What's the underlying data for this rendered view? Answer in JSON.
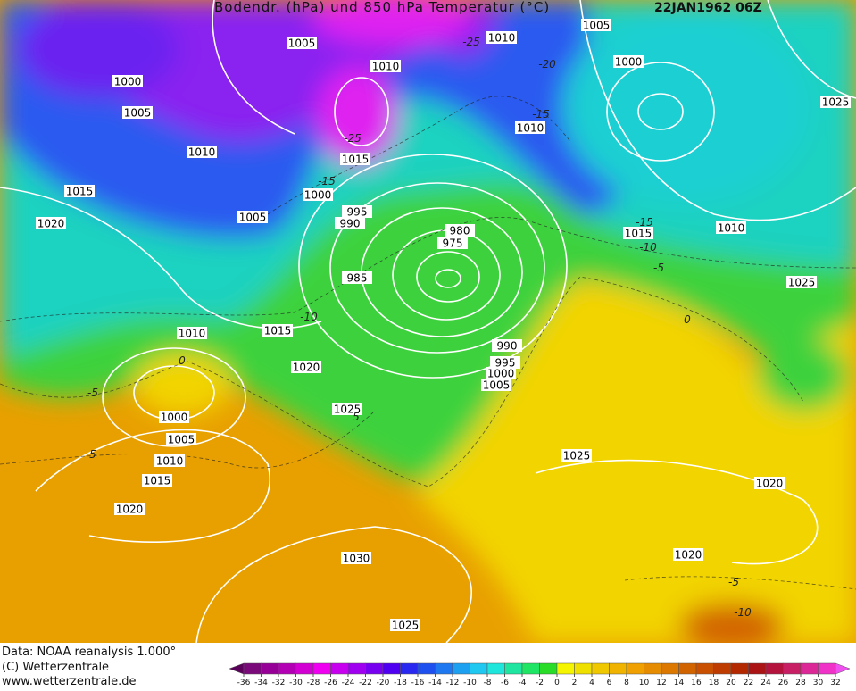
{
  "header": {
    "title": "Bodendr. (hPa) und 850 hPa Temperatur (°C)",
    "date": "22JAN1962 06Z"
  },
  "footer": [
    "Data: NOAA reanalysis 1.000°",
    "(C) Wetterzentrale",
    "www.wetterzentrale.de"
  ],
  "isobar_labels": [
    1005,
    1010,
    1005,
    1000,
    1025,
    1010,
    1000,
    1005,
    1010,
    1010,
    1015,
    1015,
    1000,
    995,
    990,
    1005,
    1020,
    980,
    975,
    1015,
    1010,
    985,
    1025,
    1010,
    1015,
    990,
    995,
    1020,
    1000,
    1005,
    1025,
    1000,
    1005,
    1010,
    1025,
    1015,
    1020,
    1020,
    1030,
    1020,
    1025
  ],
  "temperature_labels": [
    -25,
    -20,
    -15,
    -25,
    -15,
    -15,
    -10,
    -5,
    0,
    -10,
    0,
    -5,
    5,
    5,
    -5,
    -10
  ],
  "colorbar": {
    "ticks": [
      -36,
      -34,
      -32,
      -30,
      -28,
      -26,
      -24,
      -22,
      -20,
      -18,
      -16,
      -14,
      -12,
      -10,
      -8,
      -6,
      -4,
      -2,
      0,
      2,
      4,
      6,
      8,
      10,
      12,
      14,
      16,
      18,
      20,
      22,
      24,
      26,
      28,
      30,
      32
    ],
    "colors": [
      "#5a005a",
      "#7a0a7a",
      "#960096",
      "#b400b4",
      "#d200d2",
      "#f000f0",
      "#c800f0",
      "#a000f0",
      "#7800f0",
      "#5000f0",
      "#2828f0",
      "#1e50f0",
      "#1e78f0",
      "#1ea0f0",
      "#1ec8f0",
      "#1ee6dc",
      "#1ee6a0",
      "#1ee664",
      "#28dc28",
      "#f5f500",
      "#f0e000",
      "#f0c800",
      "#f0b400",
      "#f0a000",
      "#e68c00",
      "#dc7800",
      "#d26400",
      "#c85000",
      "#be3c00",
      "#b42800",
      "#aa1414",
      "#b4143c",
      "#c81e64",
      "#dc2896",
      "#f032c8",
      "#f050f0"
    ]
  }
}
